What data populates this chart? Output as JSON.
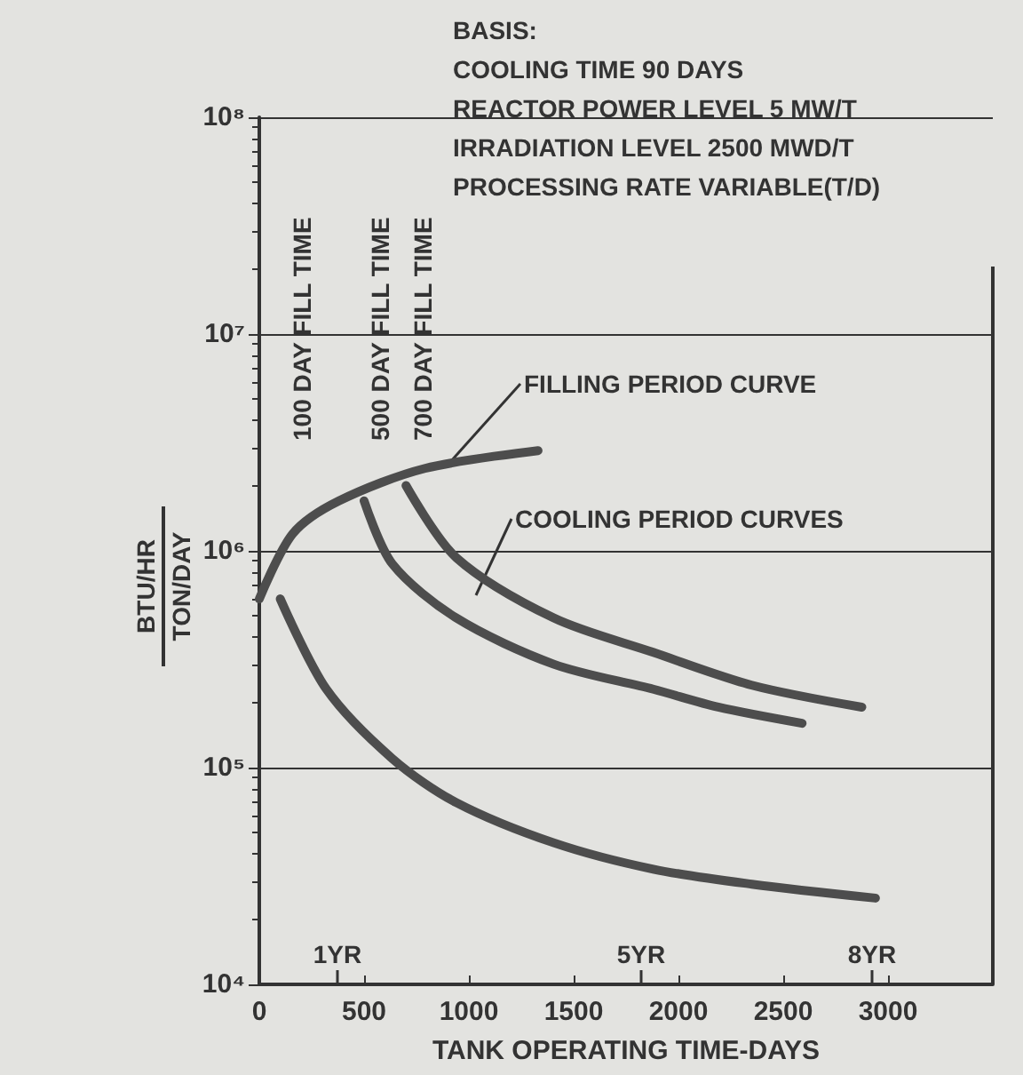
{
  "chart_data": {
    "type": "line",
    "xlabel": "TANK OPERATING TIME-DAYS",
    "ylabel": "BTU/HR\nTON/DAY",
    "log": "y",
    "grid": "y",
    "marker": "none",
    "line_style": "solid",
    "xlim": [
      0,
      3500
    ],
    "xticks": [
      0,
      500,
      1000,
      1500,
      2000,
      2500,
      3000
    ],
    "ylim": [
      10000,
      100000000
    ],
    "yticks": [
      {
        "value": 10000,
        "label": "10⁴"
      },
      {
        "value": 100000,
        "label": "10⁵"
      },
      {
        "value": 1000000,
        "label": "10⁶"
      },
      {
        "value": 10000000,
        "label": "10⁷"
      },
      {
        "value": 100000000,
        "label": "10⁸"
      }
    ],
    "series": [
      {
        "color": "#4d4d4d",
        "x": [
          0,
          160,
          380,
          790,
          1330
        ],
        "values": [
          600000,
          1200000,
          1700000,
          2400000,
          2900000
        ]
      },
      {
        "color": "#4d4d4d",
        "x": [
          100,
          320,
          635,
          940,
          1405,
          1880,
          2350,
          2940
        ],
        "values": [
          600000,
          230000,
          110000,
          69000,
          45000,
          34000,
          29000,
          25000
        ]
      },
      {
        "color": "#4d4d4d",
        "x": [
          500,
          635,
          940,
          1405,
          1880,
          2190,
          2590
        ],
        "values": [
          1700000,
          870000,
          490000,
          300000,
          230000,
          190000,
          160000
        ]
      },
      {
        "color": "#4d4d4d",
        "x": [
          700,
          940,
          1405,
          1880,
          2350,
          2875
        ],
        "values": [
          2000000,
          930000,
          490000,
          340000,
          240000,
          190000
        ]
      }
    ],
    "annotations": [
      "BASIS:",
      "COOLING TIME 90 DAYS",
      "REACTOR POWER LEVEL 5 MW/T",
      "IRRADIATION LEVEL 2500 MWD/T",
      "PROCESSING RATE VARIABLE(T/D)",
      {
        "text": "FILLING PERIOD CURVE",
        "x": 900,
        "y": 2500000
      },
      "COOLING PERIOD CURVES",
      "100 DAY FILL TIME",
      "500 DAY FILL TIME",
      "700 DAY FILL TIME",
      "1YR",
      "5YR",
      "8YR"
    ]
  }
}
